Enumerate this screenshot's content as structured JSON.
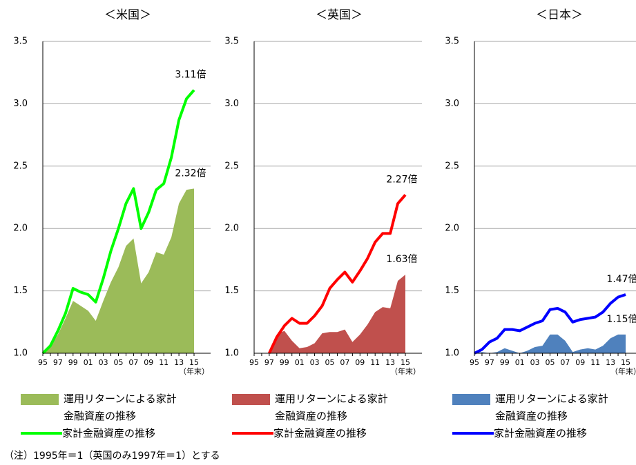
{
  "note": "（注）1995年＝1（英国のみ1997年＝1）とする",
  "chart_data": [
    {
      "type": "area",
      "title": "＜米国＞",
      "x_label": "（年末）",
      "categories": [
        "95",
        null,
        "97",
        null,
        "99",
        null,
        "01",
        null,
        "03",
        null,
        "05",
        null,
        "07",
        null,
        "09",
        null,
        "11",
        null,
        "13",
        null,
        "15"
      ],
      "ylim": [
        1,
        3.5
      ],
      "yticks": [
        {
          "value": 1,
          "label": "1.0"
        },
        {
          "value": 1.5,
          "label": "1.5"
        },
        {
          "value": 2,
          "label": "2.0"
        },
        {
          "value": 2.5,
          "label": "2.5"
        },
        {
          "value": 3,
          "label": "3.0"
        },
        {
          "value": 3.5,
          "label": "3.5"
        }
      ],
      "grid": true,
      "series": [
        {
          "name": "運用リターンによる家計金融資産の推移",
          "type": "area",
          "color": "#9bbb59",
          "values": [
            1.0,
            1.05,
            1.15,
            1.28,
            1.42,
            1.38,
            1.34,
            1.26,
            1.42,
            1.57,
            1.69,
            1.86,
            1.92,
            1.56,
            1.65,
            1.81,
            1.79,
            1.93,
            2.2,
            2.31,
            2.32
          ],
          "value_labels": [
            null,
            null,
            null,
            null,
            null,
            null,
            null,
            null,
            null,
            null,
            null,
            null,
            null,
            null,
            null,
            null,
            null,
            null,
            null,
            null,
            "2.32倍"
          ]
        },
        {
          "name": "家計金融資産の推移",
          "type": "line",
          "color": "#00ff00",
          "values": [
            1.0,
            1.06,
            1.18,
            1.32,
            1.52,
            1.49,
            1.47,
            1.41,
            1.6,
            1.82,
            2.0,
            2.2,
            2.32,
            2.0,
            2.13,
            2.31,
            2.36,
            2.57,
            2.87,
            3.04,
            3.11
          ],
          "value_labels": [
            null,
            null,
            null,
            null,
            null,
            null,
            null,
            null,
            null,
            null,
            null,
            null,
            null,
            null,
            null,
            null,
            null,
            null,
            null,
            null,
            "3.11倍"
          ]
        }
      ]
    },
    {
      "type": "area",
      "title": "＜英国＞",
      "x_label": "（年末）",
      "categories": [
        "95",
        null,
        "97",
        null,
        "99",
        null,
        "01",
        null,
        "03",
        null,
        "05",
        null,
        "07",
        null,
        "09",
        null,
        "11",
        null,
        "13",
        null,
        "15"
      ],
      "ylim": [
        1,
        3.5
      ],
      "yticks": [
        {
          "value": 1,
          "label": "1.0"
        },
        {
          "value": 1.5,
          "label": "1.5"
        },
        {
          "value": 2,
          "label": "2.0"
        },
        {
          "value": 2.5,
          "label": "2.5"
        },
        {
          "value": 3,
          "label": "3.0"
        },
        {
          "value": 3.5,
          "label": "3.5"
        }
      ],
      "grid": true,
      "series": [
        {
          "name": "運用リターンによる家計金融資産の推移",
          "type": "area",
          "color": "#c0504d",
          "values": [
            null,
            null,
            1.0,
            1.15,
            1.18,
            1.1,
            1.04,
            1.05,
            1.08,
            1.16,
            1.17,
            1.17,
            1.19,
            1.09,
            1.15,
            1.23,
            1.33,
            1.37,
            1.36,
            1.58,
            1.63
          ],
          "value_labels": [
            null,
            null,
            null,
            null,
            null,
            null,
            null,
            null,
            null,
            null,
            null,
            null,
            null,
            null,
            null,
            null,
            null,
            null,
            null,
            null,
            "1.63倍"
          ]
        },
        {
          "name": "家計金融資産の推移",
          "type": "line",
          "color": "#ff0000",
          "values": [
            null,
            null,
            1.0,
            1.13,
            1.22,
            1.28,
            1.24,
            1.24,
            1.3,
            1.38,
            1.52,
            1.59,
            1.65,
            1.57,
            1.66,
            1.76,
            1.89,
            1.96,
            1.96,
            2.2,
            2.27
          ],
          "value_labels": [
            null,
            null,
            null,
            null,
            null,
            null,
            null,
            null,
            null,
            null,
            null,
            null,
            null,
            null,
            null,
            null,
            null,
            null,
            null,
            null,
            "2.27倍"
          ]
        }
      ]
    },
    {
      "type": "area",
      "title": "＜日本＞",
      "x_label": "（年末）",
      "categories": [
        "95",
        null,
        "97",
        null,
        "99",
        null,
        "01",
        null,
        "03",
        null,
        "05",
        null,
        "07",
        null,
        "09",
        null,
        "11",
        null,
        "13",
        null,
        "15"
      ],
      "ylim": [
        1,
        3.5
      ],
      "yticks": [
        {
          "value": 1,
          "label": "1.0"
        },
        {
          "value": 1.5,
          "label": "1.5"
        },
        {
          "value": 2,
          "label": "2.0"
        },
        {
          "value": 2.5,
          "label": "2.5"
        },
        {
          "value": 3,
          "label": "3.0"
        },
        {
          "value": 3.5,
          "label": "3.5"
        }
      ],
      "grid": true,
      "series": [
        {
          "name": "運用リターンによる家計金融資産の推移",
          "type": "area",
          "color": "#4f81bd",
          "values": [
            1.0,
            1.01,
            1.0,
            1.01,
            1.04,
            1.02,
            1.0,
            1.02,
            1.05,
            1.06,
            1.15,
            1.15,
            1.1,
            1.01,
            1.03,
            1.04,
            1.03,
            1.06,
            1.12,
            1.15,
            1.15
          ],
          "value_labels": [
            null,
            null,
            null,
            null,
            null,
            null,
            null,
            null,
            null,
            null,
            null,
            null,
            null,
            null,
            null,
            null,
            null,
            null,
            null,
            null,
            "1.15倍"
          ]
        },
        {
          "name": "家計金融資産の推移",
          "type": "line",
          "color": "#0000ff",
          "values": [
            1.0,
            1.03,
            1.09,
            1.12,
            1.19,
            1.19,
            1.18,
            1.21,
            1.24,
            1.26,
            1.35,
            1.36,
            1.33,
            1.25,
            1.27,
            1.28,
            1.29,
            1.33,
            1.4,
            1.45,
            1.47
          ],
          "value_labels": [
            null,
            null,
            null,
            null,
            null,
            null,
            null,
            null,
            null,
            null,
            null,
            null,
            null,
            null,
            null,
            null,
            null,
            null,
            null,
            null,
            "1.47倍"
          ]
        }
      ]
    }
  ]
}
